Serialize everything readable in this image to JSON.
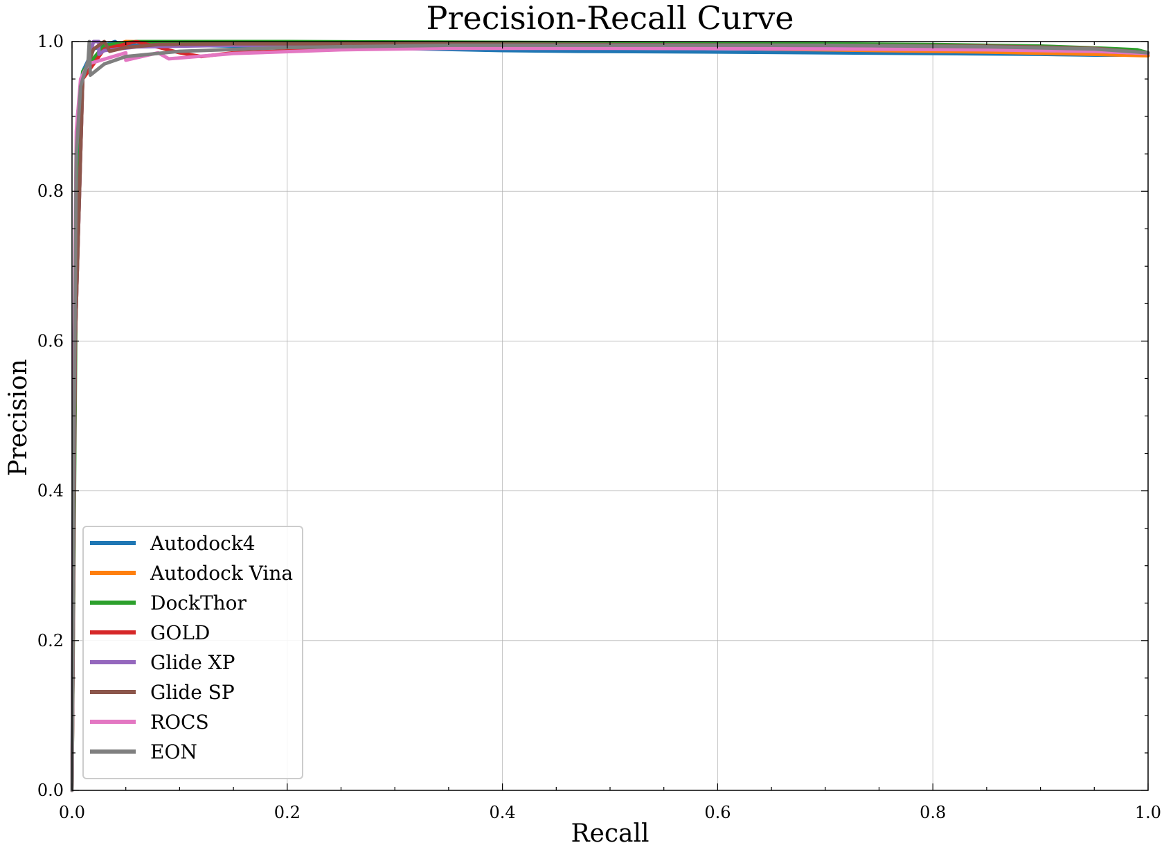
{
  "chart_data": {
    "type": "line",
    "title": "Precision-Recall Curve",
    "xlabel": "Recall",
    "ylabel": "Precision",
    "xlim": [
      0.0,
      1.0
    ],
    "ylim": [
      0.0,
      1.0
    ],
    "xticks": [
      "0.0",
      "0.2",
      "0.4",
      "0.6",
      "0.8",
      "1.0"
    ],
    "yticks": [
      "0.0",
      "0.2",
      "0.4",
      "0.6",
      "0.8",
      "1.0"
    ],
    "grid": true,
    "legend_position": "lower-left",
    "series": [
      {
        "name": "Autodock4",
        "color": "#1f77b4",
        "points": [
          [
            0.0,
            0.0
          ],
          [
            0.002,
            0.6
          ],
          [
            0.005,
            0.9
          ],
          [
            0.01,
            0.96
          ],
          [
            0.02,
            0.99
          ],
          [
            0.04,
            1.0
          ],
          [
            0.045,
            0.995
          ],
          [
            0.1,
            0.995
          ],
          [
            0.2,
            0.993
          ],
          [
            0.3,
            0.991
          ],
          [
            0.4,
            0.988
          ],
          [
            0.47,
            0.987
          ],
          [
            0.6,
            0.986
          ],
          [
            0.8,
            0.984
          ],
          [
            0.9,
            0.983
          ],
          [
            0.95,
            0.982
          ],
          [
            1.0,
            0.982
          ]
        ]
      },
      {
        "name": "Autodock Vina",
        "color": "#ff7f0e",
        "points": [
          [
            0.0,
            0.0
          ],
          [
            0.003,
            0.65
          ],
          [
            0.01,
            0.95
          ],
          [
            0.03,
            0.99
          ],
          [
            0.05,
            1.0
          ],
          [
            0.15,
            0.998
          ],
          [
            0.3,
            0.996
          ],
          [
            0.5,
            0.993
          ],
          [
            0.7,
            0.989
          ],
          [
            0.85,
            0.986
          ],
          [
            0.95,
            0.983
          ],
          [
            1.0,
            0.981
          ]
        ]
      },
      {
        "name": "DockThor",
        "color": "#2ca02c",
        "points": [
          [
            0.0,
            0.0
          ],
          [
            0.004,
            0.7
          ],
          [
            0.01,
            0.96
          ],
          [
            0.03,
            0.995
          ],
          [
            0.06,
            1.0
          ],
          [
            0.2,
            1.0
          ],
          [
            0.4,
            0.999
          ],
          [
            0.6,
            0.998
          ],
          [
            0.8,
            0.996
          ],
          [
            0.9,
            0.994
          ],
          [
            0.96,
            0.991
          ],
          [
            0.99,
            0.989
          ],
          [
            1.0,
            0.985
          ]
        ]
      },
      {
        "name": "GOLD",
        "color": "#d62728",
        "points": [
          [
            0.0,
            0.0
          ],
          [
            0.003,
            0.6
          ],
          [
            0.01,
            0.95
          ],
          [
            0.03,
            0.99
          ],
          [
            0.06,
            1.0
          ],
          [
            0.1,
            0.985
          ],
          [
            0.12,
            0.98
          ],
          [
            0.15,
            0.985
          ],
          [
            0.25,
            0.99
          ],
          [
            0.4,
            0.992
          ],
          [
            0.6,
            0.993
          ],
          [
            0.8,
            0.993
          ],
          [
            0.9,
            0.99
          ],
          [
            1.0,
            0.984
          ]
        ]
      },
      {
        "name": "Glide XP",
        "color": "#9467bd",
        "points": [
          [
            0.0,
            0.0
          ],
          [
            0.003,
            0.6
          ],
          [
            0.01,
            0.95
          ],
          [
            0.02,
            1.0
          ],
          [
            0.025,
            1.0
          ],
          [
            0.025,
            0.983
          ],
          [
            0.03,
            0.988
          ],
          [
            0.06,
            0.993
          ],
          [
            0.15,
            0.995
          ],
          [
            0.3,
            0.995
          ],
          [
            0.5,
            0.994
          ],
          [
            0.7,
            0.994
          ],
          [
            0.85,
            0.993
          ],
          [
            0.95,
            0.99
          ],
          [
            1.0,
            0.985
          ]
        ]
      },
      {
        "name": "Glide SP",
        "color": "#8c564b",
        "points": [
          [
            0.0,
            0.0
          ],
          [
            0.003,
            0.6
          ],
          [
            0.01,
            0.95
          ],
          [
            0.02,
            0.99
          ],
          [
            0.03,
            1.0
          ],
          [
            0.035,
            0.987
          ],
          [
            0.05,
            0.992
          ],
          [
            0.08,
            0.996
          ],
          [
            0.15,
            0.997
          ],
          [
            0.3,
            0.997
          ],
          [
            0.5,
            0.996
          ],
          [
            0.7,
            0.995
          ],
          [
            0.85,
            0.994
          ],
          [
            0.95,
            0.991
          ],
          [
            1.0,
            0.985
          ]
        ]
      },
      {
        "name": "ROCS",
        "color": "#e377c2",
        "points": [
          [
            0.0,
            0.0
          ],
          [
            0.002,
            0.6
          ],
          [
            0.004,
            0.88
          ],
          [
            0.008,
            0.95
          ],
          [
            0.015,
            0.97
          ],
          [
            0.05,
            0.985
          ],
          [
            0.05,
            0.975
          ],
          [
            0.08,
            0.985
          ],
          [
            0.09,
            0.977
          ],
          [
            0.15,
            0.984
          ],
          [
            0.25,
            0.989
          ],
          [
            0.35,
            0.991
          ],
          [
            0.5,
            0.991
          ],
          [
            0.7,
            0.99
          ],
          [
            0.85,
            0.989
          ],
          [
            0.95,
            0.987
          ],
          [
            1.0,
            0.984
          ]
        ]
      },
      {
        "name": "EON",
        "color": "#7f7f7f",
        "points": [
          [
            0.0,
            0.0
          ],
          [
            0.002,
            0.5
          ],
          [
            0.004,
            0.85
          ],
          [
            0.008,
            0.94
          ],
          [
            0.015,
            0.975
          ],
          [
            0.016,
            1.0
          ],
          [
            0.017,
            0.955
          ],
          [
            0.03,
            0.97
          ],
          [
            0.05,
            0.98
          ],
          [
            0.1,
            0.987
          ],
          [
            0.2,
            0.992
          ],
          [
            0.35,
            0.995
          ],
          [
            0.5,
            0.995
          ],
          [
            0.7,
            0.995
          ],
          [
            0.85,
            0.993
          ],
          [
            0.95,
            0.99
          ],
          [
            1.0,
            0.985
          ]
        ]
      }
    ]
  }
}
